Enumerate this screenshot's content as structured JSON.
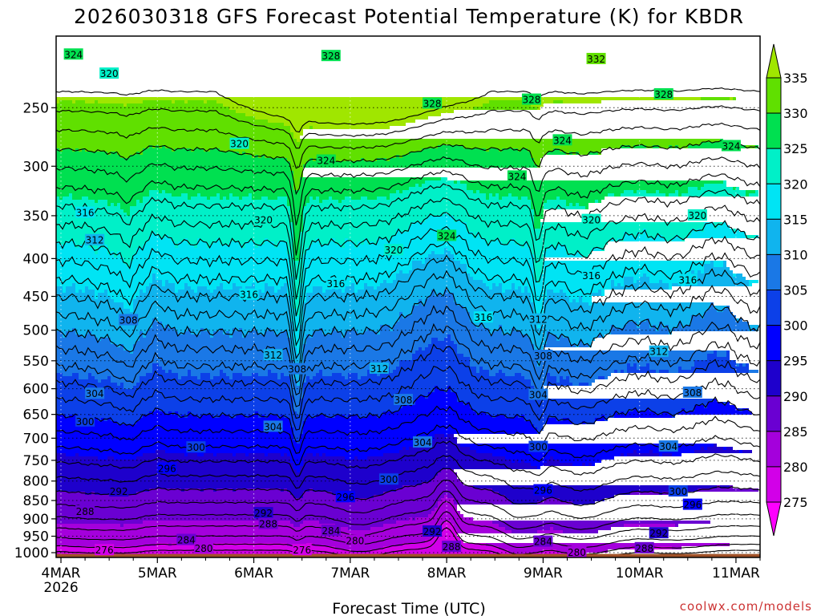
{
  "chart_data": {
    "type": "heatmap",
    "title": "2026030318 GFS Forecast Potential Temperature (K) for KBDR",
    "xlabel": "Forecast Time (UTC)",
    "ylabel": "",
    "credit": "coolwx.com/models",
    "x_ticks": [
      "4MAR",
      "5MAR",
      "6MAR",
      "7MAR",
      "8MAR",
      "9MAR",
      "10MAR",
      "11MAR"
    ],
    "x_year": "2026",
    "x_range_days": [
      3.95,
      11.25
    ],
    "y_ticks": [
      250,
      300,
      350,
      400,
      450,
      500,
      550,
      600,
      650,
      700,
      750,
      800,
      850,
      900,
      950,
      1000
    ],
    "y_range_hpa": [
      200,
      1015
    ],
    "y_scale": "log",
    "grid": true,
    "colorbar": {
      "levels": [
        275,
        280,
        285,
        290,
        295,
        300,
        305,
        310,
        315,
        320,
        325,
        330,
        335
      ],
      "colors": [
        "#ff00ff",
        "#d200e8",
        "#a400dc",
        "#6a00d2",
        "#1e00cc",
        "#0000ff",
        "#0c40e8",
        "#1a78e6",
        "#10b4ee",
        "#00e4f4",
        "#00f0c8",
        "#00e050",
        "#60e000",
        "#a0e600"
      ],
      "extend": "both"
    },
    "ground_color": "#a05228",
    "contour_interval_K": 2,
    "contour_labels": [
      {
        "value": "324",
        "t": 4.13,
        "p": 212
      },
      {
        "value": "320",
        "t": 4.5,
        "p": 225
      },
      {
        "value": "320",
        "t": 5.85,
        "p": 280
      },
      {
        "value": "328",
        "t": 6.8,
        "p": 213
      },
      {
        "value": "328",
        "t": 7.85,
        "p": 247
      },
      {
        "value": "328",
        "t": 8.88,
        "p": 244
      },
      {
        "value": "332",
        "t": 9.55,
        "p": 215
      },
      {
        "value": "328",
        "t": 10.25,
        "p": 240
      },
      {
        "value": "324",
        "t": 6.75,
        "p": 295
      },
      {
        "value": "324",
        "t": 8.73,
        "p": 310
      },
      {
        "value": "324",
        "t": 9.2,
        "p": 277
      },
      {
        "value": "324",
        "t": 10.95,
        "p": 282
      },
      {
        "value": "316",
        "t": 4.25,
        "p": 347
      },
      {
        "value": "312",
        "t": 4.35,
        "p": 378
      },
      {
        "value": "320",
        "t": 6.1,
        "p": 355
      },
      {
        "value": "320",
        "t": 7.45,
        "p": 390
      },
      {
        "value": "324",
        "t": 8.0,
        "p": 373
      },
      {
        "value": "320",
        "t": 9.5,
        "p": 355
      },
      {
        "value": "320",
        "t": 10.6,
        "p": 350
      },
      {
        "value": "316",
        "t": 5.95,
        "p": 448
      },
      {
        "value": "316",
        "t": 6.85,
        "p": 433
      },
      {
        "value": "316",
        "t": 8.38,
        "p": 481
      },
      {
        "value": "312",
        "t": 8.95,
        "p": 484
      },
      {
        "value": "316",
        "t": 9.5,
        "p": 422
      },
      {
        "value": "316",
        "t": 10.5,
        "p": 428
      },
      {
        "value": "308",
        "t": 4.7,
        "p": 485
      },
      {
        "value": "312",
        "t": 6.2,
        "p": 541
      },
      {
        "value": "308",
        "t": 6.45,
        "p": 565
      },
      {
        "value": "312",
        "t": 7.3,
        "p": 564
      },
      {
        "value": "308",
        "t": 9.0,
        "p": 542
      },
      {
        "value": "312",
        "t": 10.2,
        "p": 535
      },
      {
        "value": "304",
        "t": 4.35,
        "p": 610
      },
      {
        "value": "300",
        "t": 4.25,
        "p": 665
      },
      {
        "value": "308",
        "t": 7.55,
        "p": 622
      },
      {
        "value": "304",
        "t": 6.2,
        "p": 676
      },
      {
        "value": "304",
        "t": 8.95,
        "p": 612
      },
      {
        "value": "308",
        "t": 10.55,
        "p": 608
      },
      {
        "value": "300",
        "t": 5.4,
        "p": 721
      },
      {
        "value": "304",
        "t": 7.75,
        "p": 710
      },
      {
        "value": "300",
        "t": 8.95,
        "p": 720
      },
      {
        "value": "304",
        "t": 10.3,
        "p": 719
      },
      {
        "value": "296",
        "t": 5.1,
        "p": 770
      },
      {
        "value": "300",
        "t": 7.4,
        "p": 797
      },
      {
        "value": "296",
        "t": 6.95,
        "p": 842
      },
      {
        "value": "296",
        "t": 9.0,
        "p": 824
      },
      {
        "value": "300",
        "t": 10.4,
        "p": 827
      },
      {
        "value": "296",
        "t": 10.55,
        "p": 862
      },
      {
        "value": "292",
        "t": 4.6,
        "p": 827
      },
      {
        "value": "288",
        "t": 4.25,
        "p": 880
      },
      {
        "value": "292",
        "t": 6.1,
        "p": 885
      },
      {
        "value": "288",
        "t": 6.15,
        "p": 915
      },
      {
        "value": "284",
        "t": 6.8,
        "p": 935
      },
      {
        "value": "292",
        "t": 7.85,
        "p": 937
      },
      {
        "value": "292",
        "t": 10.2,
        "p": 942
      },
      {
        "value": "284",
        "t": 5.3,
        "p": 962
      },
      {
        "value": "280",
        "t": 5.48,
        "p": 987
      },
      {
        "value": "280",
        "t": 7.05,
        "p": 964
      },
      {
        "value": "288",
        "t": 8.05,
        "p": 983
      },
      {
        "value": "284",
        "t": 9.0,
        "p": 967
      },
      {
        "value": "280",
        "t": 9.35,
        "p": 1000
      },
      {
        "value": "288",
        "t": 10.05,
        "p": 987
      },
      {
        "value": "276",
        "t": 4.45,
        "p": 993
      },
      {
        "value": "276",
        "t": 6.5,
        "p": 993
      }
    ]
  }
}
